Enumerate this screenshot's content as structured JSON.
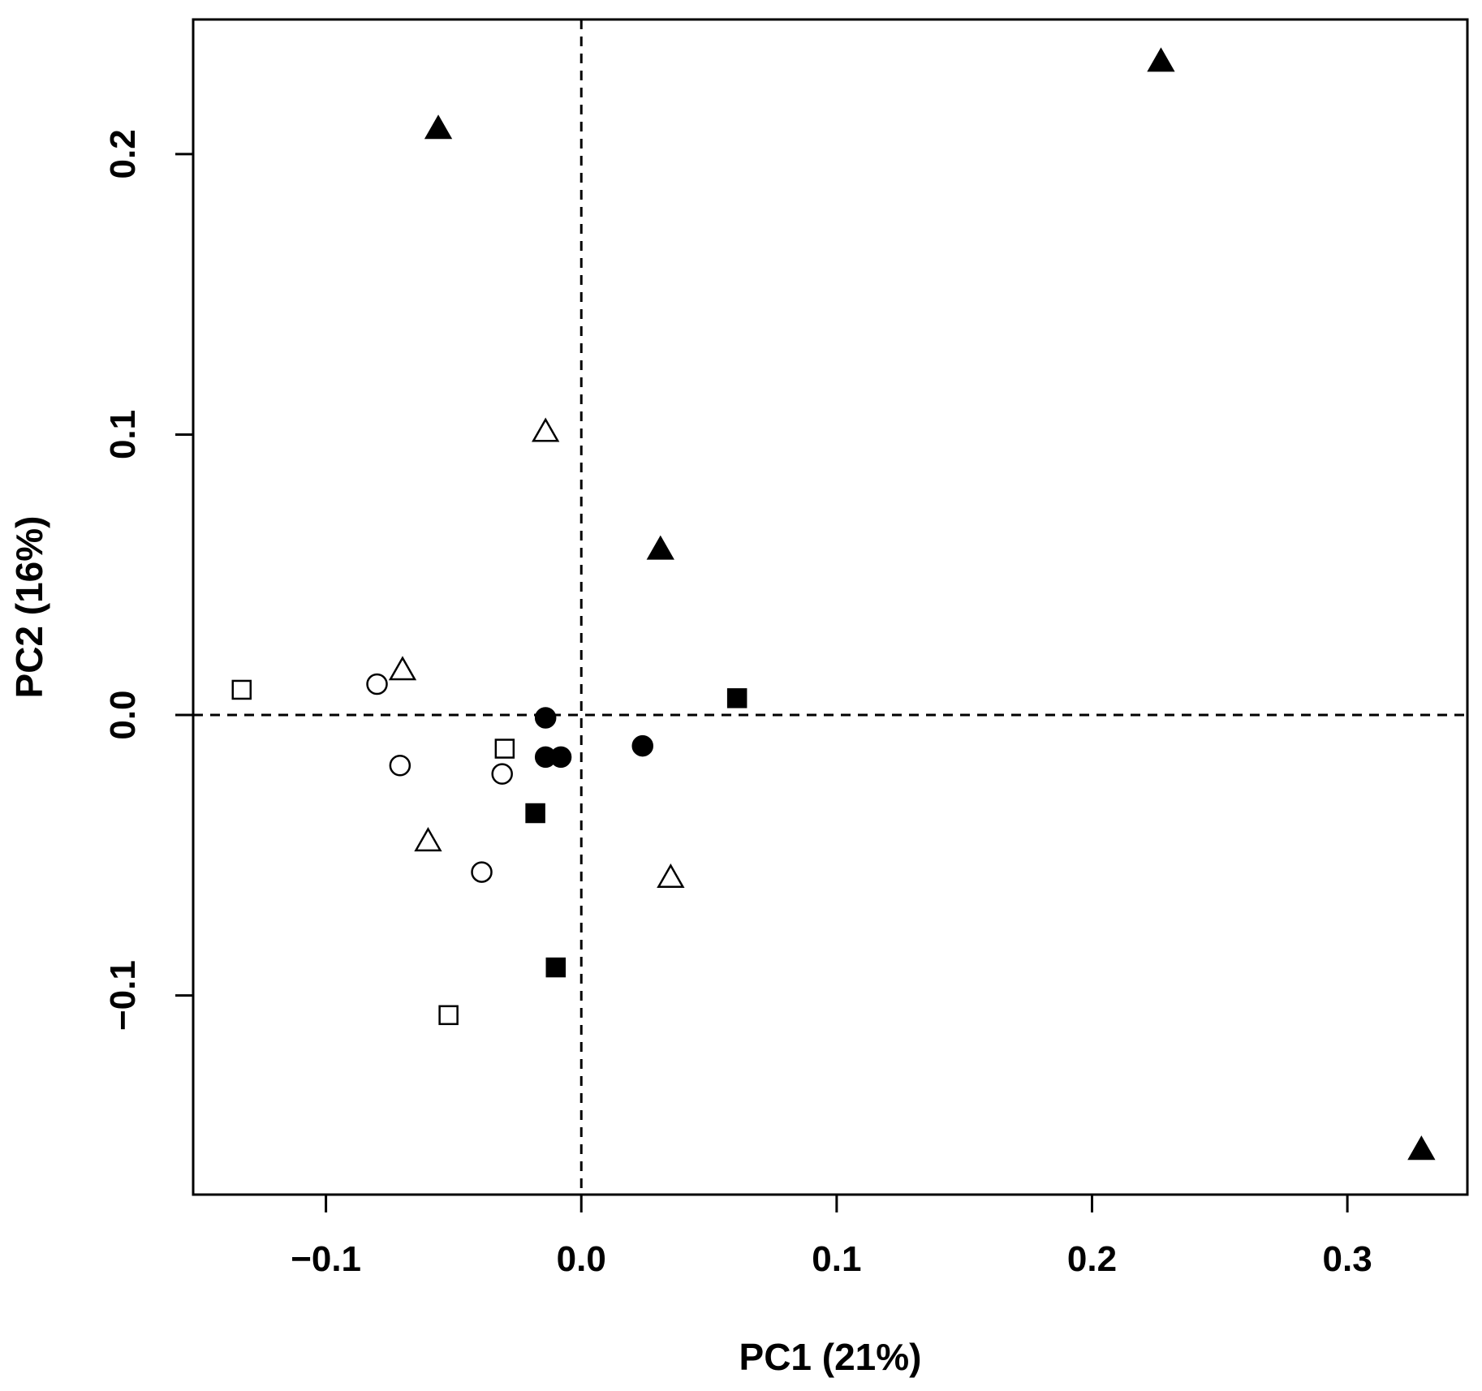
{
  "chart_data": {
    "type": "scatter",
    "title": "",
    "xlabel": "PC1 (21%)",
    "ylabel": "PC2 (16%)",
    "xlim": [
      -0.152,
      0.347
    ],
    "ylim": [
      -0.171,
      0.248
    ],
    "x_ticks": [
      {
        "value": -0.1,
        "label": "−0.1"
      },
      {
        "value": 0.0,
        "label": "0.0"
      },
      {
        "value": 0.1,
        "label": "0.1"
      },
      {
        "value": 0.2,
        "label": "0.2"
      },
      {
        "value": 0.3,
        "label": "0.3"
      }
    ],
    "y_ticks": [
      {
        "value": -0.1,
        "label": "−0.1"
      },
      {
        "value": 0.0,
        "label": "0.0"
      },
      {
        "value": 0.1,
        "label": "0.1"
      },
      {
        "value": 0.2,
        "label": "0.2"
      }
    ],
    "reference_lines": {
      "x": 0,
      "y": 0,
      "style": "dashed"
    },
    "grid": false,
    "legend": "none",
    "colors": {
      "marker": "#000000",
      "axis": "#000000",
      "background": "#ffffff"
    },
    "series": [
      {
        "marker": "filled-triangle",
        "points": [
          {
            "x": -0.056,
            "y": 0.209
          },
          {
            "x": 0.227,
            "y": 0.233
          },
          {
            "x": 0.031,
            "y": 0.059
          },
          {
            "x": 0.329,
            "y": -0.155
          }
        ]
      },
      {
        "marker": "open-triangle",
        "points": [
          {
            "x": -0.014,
            "y": 0.101
          },
          {
            "x": -0.07,
            "y": 0.016
          },
          {
            "x": -0.06,
            "y": -0.045
          },
          {
            "x": 0.035,
            "y": -0.058
          }
        ]
      },
      {
        "marker": "filled-circle",
        "points": [
          {
            "x": -0.014,
            "y": -0.001
          },
          {
            "x": -0.014,
            "y": -0.015
          },
          {
            "x": -0.008,
            "y": -0.015
          },
          {
            "x": 0.024,
            "y": -0.011
          }
        ]
      },
      {
        "marker": "open-circle",
        "points": [
          {
            "x": -0.08,
            "y": 0.011
          },
          {
            "x": -0.071,
            "y": -0.018
          },
          {
            "x": -0.031,
            "y": -0.021
          },
          {
            "x": -0.039,
            "y": -0.056
          }
        ]
      },
      {
        "marker": "filled-square",
        "points": [
          {
            "x": 0.061,
            "y": 0.006
          },
          {
            "x": -0.018,
            "y": -0.035
          },
          {
            "x": -0.01,
            "y": -0.09
          }
        ]
      },
      {
        "marker": "open-square",
        "points": [
          {
            "x": -0.133,
            "y": 0.009
          },
          {
            "x": -0.03,
            "y": -0.012
          },
          {
            "x": -0.052,
            "y": -0.107
          }
        ]
      }
    ]
  }
}
